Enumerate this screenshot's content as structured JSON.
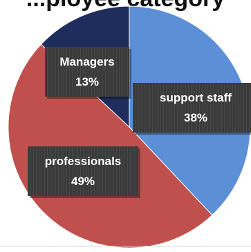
{
  "chart_data": {
    "type": "pie",
    "title": "...ployee category",
    "categories": [
      "support staff",
      "professionals",
      "Managers"
    ],
    "values": [
      38,
      49,
      13
    ],
    "percent_labels": [
      "38%",
      "49%",
      "13%"
    ],
    "colors": [
      "#5b8fd6",
      "#c0504d",
      "#1f2d5c"
    ],
    "start_angle_deg": 0,
    "direction": "clockwise",
    "label_style": {
      "background": "#3a3a3a",
      "text_color": "#ffffff"
    },
    "legend": "none"
  }
}
